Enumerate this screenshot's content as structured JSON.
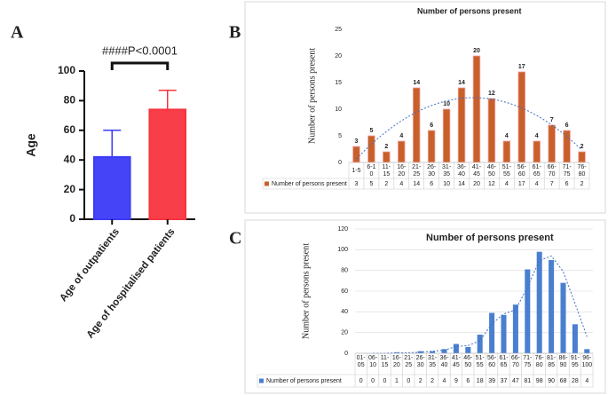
{
  "chart_data": [
    {
      "panel": "A",
      "type": "bar",
      "annotation": "####P<0.0001",
      "y_label": "Age",
      "categories": [
        "Age of outpatients",
        "Age of hospitalised patients"
      ],
      "values": [
        42,
        74
      ],
      "errors": [
        18,
        13
      ],
      "colors": [
        "#3b3bf7",
        "#f7343f"
      ],
      "ylim": [
        0,
        100
      ],
      "yticks": [
        0,
        20,
        40,
        60,
        80,
        100
      ],
      "grid": false
    },
    {
      "panel": "B",
      "type": "bar",
      "title": "Number of persons present",
      "y_label": "Number of persons present",
      "categories": [
        "1-5",
        "6-10",
        "11-15",
        "16-20",
        "21-25",
        "26-30",
        "31-35",
        "36-40",
        "41-45",
        "46-50",
        "51-55",
        "56-60",
        "61-65",
        "66-70",
        "71-75",
        "76-80"
      ],
      "series": [
        {
          "name": "Number of persons present",
          "color": "#c8602a",
          "values": [
            3,
            5,
            2,
            4,
            14,
            6,
            10,
            14,
            20,
            12,
            4,
            17,
            4,
            7,
            6,
            2
          ]
        }
      ],
      "ylim": [
        0,
        25
      ],
      "yticks": [
        0,
        5,
        10,
        15,
        20,
        25
      ],
      "grid": false,
      "data_labels": true,
      "data_table": true,
      "trendline": "polynomial"
    },
    {
      "panel": "C",
      "type": "bar",
      "title": "Number of persons present",
      "y_label": "Number of persons present",
      "categories": [
        "01-05",
        "06-10",
        "11-15",
        "16-20",
        "21-25",
        "26-30",
        "31-35",
        "36-40",
        "41-45",
        "46-50",
        "51-55",
        "56-60",
        "61-65",
        "66-70",
        "71-75",
        "76-80",
        "81-85",
        "86-90",
        "91-95",
        "96-100"
      ],
      "series": [
        {
          "name": "Number of persons present",
          "color": "#4a7fd0",
          "values": [
            0,
            0,
            0,
            1,
            0,
            2,
            2,
            4,
            9,
            6,
            18,
            39,
            37,
            47,
            81,
            98,
            90,
            68,
            28,
            4
          ]
        }
      ],
      "ylim": [
        0,
        120
      ],
      "yticks": [
        0,
        20,
        40,
        60,
        80,
        100,
        120
      ],
      "grid": true,
      "data_labels": false,
      "data_table": true,
      "trendline": "moving-average"
    }
  ]
}
